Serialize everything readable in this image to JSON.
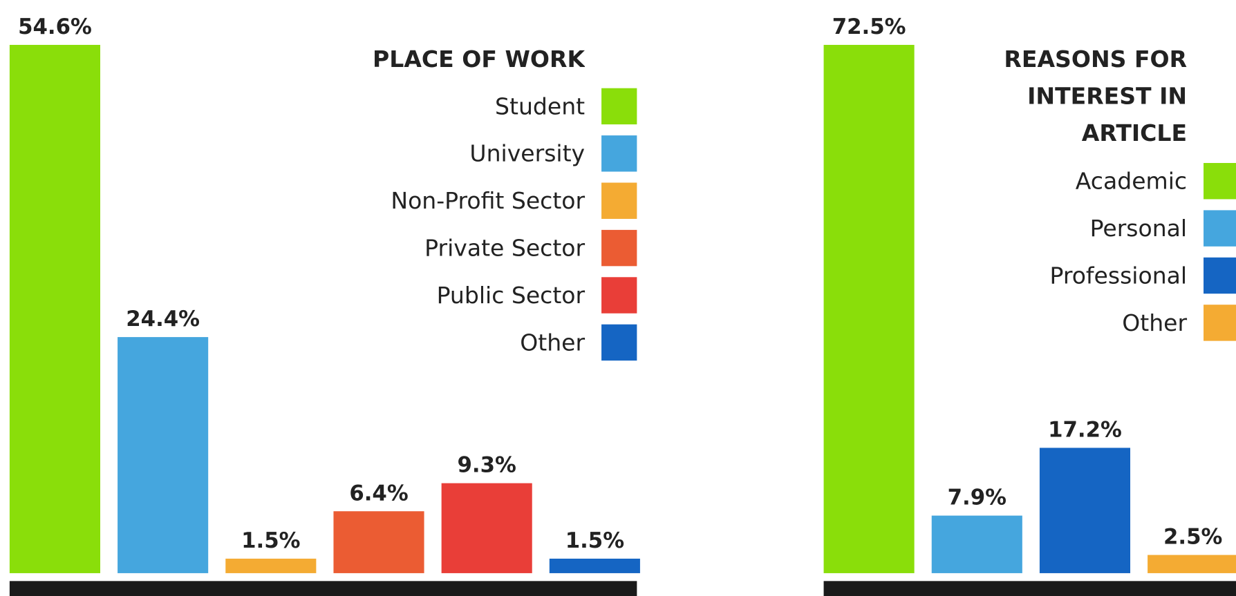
{
  "chart_data": [
    {
      "type": "bar",
      "title": "PLACE OF WORK",
      "categories": [
        "Student",
        "University",
        "Non-Profit Sector",
        "Private Sector",
        "Public Sector",
        "Other"
      ],
      "values": [
        54.6,
        24.4,
        1.5,
        6.4,
        9.3,
        1.5
      ],
      "value_labels": [
        "54.6%",
        "24.4%",
        "1.5%",
        "6.4%",
        "9.3%",
        "1.5%"
      ],
      "colors": [
        "#8ade0a",
        "#45a6de",
        "#f4ab33",
        "#eb5c33",
        "#e93e38",
        "#1565c3"
      ],
      "legend": "top-right"
    },
    {
      "type": "bar",
      "title": "REASONS FOR INTEREST IN ARTICLE",
      "categories": [
        "Academic",
        "Personal",
        "Professional",
        "Other"
      ],
      "values": [
        72.5,
        7.9,
        17.2,
        2.5
      ],
      "value_labels": [
        "72.5%",
        "7.9%",
        "17.2%",
        "2.5%"
      ],
      "colors": [
        "#8ade0a",
        "#45a6de",
        "#1565c3",
        "#f4ab33"
      ],
      "legend": "top-right"
    }
  ]
}
